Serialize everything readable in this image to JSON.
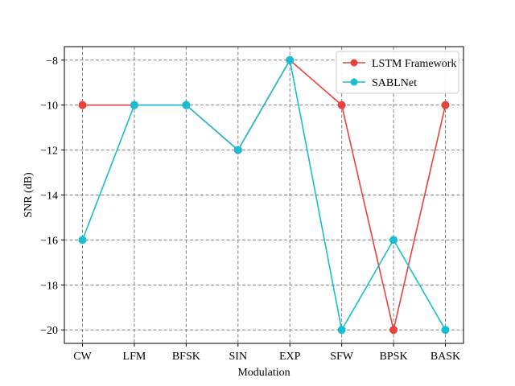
{
  "chart_data": {
    "type": "line",
    "categories": [
      "CW",
      "LFM",
      "BFSK",
      "SIN",
      "EXP",
      "SFW",
      "BPSK",
      "BASK"
    ],
    "series": [
      {
        "name": "LSTM Framework",
        "color": "#e8433a",
        "marker": "circle",
        "values": [
          -10,
          -10,
          -10,
          -12,
          -8,
          -10,
          -20,
          -10
        ]
      },
      {
        "name": "SABLNet",
        "color": "#17becf",
        "marker": "circle",
        "values": [
          -16,
          -10,
          -10,
          -12,
          -8,
          -20,
          -16,
          -20
        ]
      }
    ],
    "xlabel": "Modulation",
    "ylabel": "SNR (dB)",
    "ylim": [
      -20.6,
      -7.4
    ],
    "yticks": [
      -20,
      -18,
      -16,
      -14,
      -12,
      -10,
      -8
    ],
    "ytick_labels": [
      "−20",
      "−18",
      "−16",
      "−14",
      "−12",
      "−10",
      "−8"
    ],
    "grid": true,
    "grid_style": "dashed",
    "legend_position": "top-right"
  }
}
